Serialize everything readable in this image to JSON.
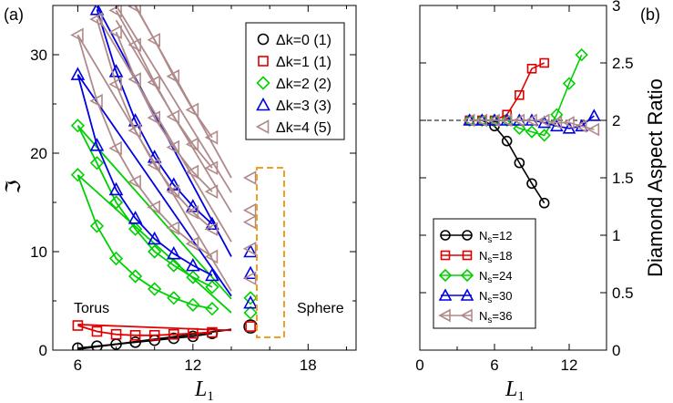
{
  "chart_data": [
    {
      "type": "line",
      "panel_label": "(a)",
      "xlabel": "L",
      "xlabel_sub": "1",
      "ylabel": "ℑ",
      "xlim": [
        4.7,
        20.5
      ],
      "ylim": [
        0,
        35
      ],
      "xticks": [
        6,
        12,
        18
      ],
      "yticks": [
        0,
        10,
        20,
        30
      ],
      "annotations": {
        "left": "Torus",
        "right": "Sphere"
      },
      "legend_position": "top-right",
      "series": [
        {
          "name": "Δk=0 (1)",
          "color": "#000000",
          "marker": "circle",
          "curves": [
            {
              "x": [
                6,
                7,
                8,
                9,
                10,
                11,
                12,
                13
              ],
              "y": [
                0.2,
                0.4,
                0.6,
                0.8,
                1.0,
                1.2,
                1.4,
                1.7
              ],
              "line_x": [
                6,
                14
              ],
              "line_y": [
                0.1,
                2.1
              ]
            }
          ]
        },
        {
          "name": "Δk=1 (1)",
          "color": "#e00000",
          "marker": "square",
          "curves": [
            {
              "x": [
                6,
                7,
                8,
                9,
                10,
                11,
                12,
                13
              ],
              "y": [
                2.5,
                1.9,
                1.6,
                1.5,
                1.5,
                1.6,
                1.7,
                1.8
              ],
              "line_x": [
                6,
                14
              ],
              "line_y": [
                2.6,
                2.0
              ]
            }
          ]
        },
        {
          "name": "Δk=2 (2)",
          "color": "#00d000",
          "marker": "diamond",
          "curves": [
            {
              "x": [
                6,
                7,
                8,
                9,
                10,
                11,
                12,
                13
              ],
              "y": [
                22.8,
                19.0,
                15.0,
                12.3,
                10.0,
                8.6,
                7.4,
                6.4
              ],
              "line_x": [
                6,
                14
              ],
              "line_y": [
                22.8,
                5.2
              ]
            },
            {
              "x": [
                6,
                7,
                8,
                9,
                10,
                11,
                12,
                13
              ],
              "y": [
                17.8,
                12.6,
                9.3,
                7.5,
                6.2,
                5.3,
                4.6,
                4.2
              ],
              "line_x": [
                6,
                14
              ],
              "line_y": [
                17.8,
                3.8
              ]
            }
          ]
        },
        {
          "name": "Δk=3 (3)",
          "color": "#0000e0",
          "marker": "triangle-up",
          "curves": [
            {
              "x": [
                6,
                7,
                8,
                9,
                10,
                11,
                12,
                13
              ],
              "y": [
                28.0,
                20.8,
                16.3,
                13.4,
                11.3,
                9.8,
                8.6,
                7.6
              ],
              "line_x": [
                6,
                14
              ],
              "line_y": [
                28.0,
                5.5
              ]
            },
            {
              "x": [
                7,
                8,
                9,
                10,
                11,
                12,
                13
              ],
              "y": [
                34.6,
                28.3,
                23.3,
                19.6,
                16.8,
                14.6,
                12.8
              ],
              "line_x": [
                7,
                14
              ],
              "line_y": [
                34.9,
                9.5
              ]
            }
          ]
        },
        {
          "name": "Δk=4 (5)",
          "color": "#b08a8a",
          "marker": "triangle-left",
          "curves": [
            {
              "x": [
                6,
                7,
                8,
                9,
                10,
                11,
                12,
                13
              ],
              "y": [
                32.0,
                25.3,
                20.5,
                17.1,
                14.5,
                12.4,
                10.8,
                9.5
              ],
              "line_x": [
                6,
                14
              ],
              "line_y": [
                32.0,
                6.0
              ]
            },
            {
              "x": [
                7,
                8,
                9,
                10,
                11,
                12,
                13
              ],
              "y": [
                33.6,
                27.0,
                22.3,
                18.8,
                16.1,
                14.0,
                12.3
              ],
              "line_x": [
                7,
                14
              ],
              "line_y": [
                34.0,
                11.0
              ]
            },
            {
              "x": [
                8,
                9,
                10,
                11,
                12,
                13
              ],
              "y": [
                32.3,
                27.5,
                23.6,
                20.6,
                18.1,
                16.1
              ],
              "line_x": [
                8,
                14
              ],
              "line_y": [
                33.5,
                14.0
              ]
            },
            {
              "x": [
                8,
                9,
                10,
                11,
                12,
                13
              ],
              "y": [
                34.5,
                31.0,
                27.2,
                23.7,
                20.9,
                18.5
              ],
              "line_x": [
                8,
                14
              ],
              "line_y": [
                35.0,
                16.0
              ]
            },
            {
              "x": [
                9,
                10,
                11,
                12,
                13
              ],
              "y": [
                34.9,
                31.5,
                27.8,
                24.4,
                21.6
              ],
              "line_x": [
                9,
                14
              ],
              "line_y": [
                35.0,
                17.5
              ]
            }
          ]
        }
      ],
      "sphere_points": [
        {
          "color": "#000000",
          "marker": "circle",
          "x": 15,
          "y": [
            2.4
          ]
        },
        {
          "color": "#e00000",
          "marker": "square",
          "x": 15,
          "y": [
            2.4
          ]
        },
        {
          "color": "#00d000",
          "marker": "diamond",
          "x": 15,
          "y": [
            3.8,
            5.3
          ]
        },
        {
          "color": "#0000e0",
          "marker": "triangle-up",
          "x": 15,
          "y": [
            4.8,
            7.8,
            10.0
          ]
        },
        {
          "color": "#b08a8a",
          "marker": "triangle-left",
          "x": 15,
          "y": [
            7.3,
            10.3,
            14.2,
            17.5,
            13.0
          ]
        }
      ]
    },
    {
      "type": "line",
      "panel_label": "(b)",
      "xlabel": "L",
      "xlabel_sub": "1",
      "ylabel": "Diamond Aspect Ratio",
      "xlim": [
        0,
        15
      ],
      "ylim": [
        0,
        3
      ],
      "xticks": [
        0,
        6,
        12
      ],
      "yticks": [
        0,
        0.5,
        1,
        1.5,
        2,
        2.5,
        3
      ],
      "ytick_labels": [
        "0",
        "0.5",
        "1",
        "1.5",
        "2",
        "2.5",
        "3"
      ],
      "reference_line": 2,
      "legend_position": "bottom-left",
      "series": [
        {
          "name": "N",
          "name_sub": "s",
          "name_suffix": "=12",
          "color": "#000000",
          "marker": "circle",
          "x": [
            4,
            5,
            6,
            7,
            8,
            9,
            10
          ],
          "y": [
            2.0,
            2.0,
            1.95,
            1.82,
            1.63,
            1.45,
            1.28
          ]
        },
        {
          "name": "N",
          "name_sub": "s",
          "name_suffix": "=18",
          "color": "#e00000",
          "marker": "square",
          "x": [
            4,
            5,
            6,
            7,
            8,
            9,
            10
          ],
          "y": [
            2.0,
            2.0,
            2.0,
            2.05,
            2.22,
            2.45,
            2.5
          ]
        },
        {
          "name": "N",
          "name_sub": "s",
          "name_suffix": "=24",
          "color": "#00d000",
          "marker": "diamond",
          "x": [
            4,
            5,
            6,
            7,
            8,
            9,
            10,
            11,
            12,
            13
          ],
          "y": [
            2.0,
            2.0,
            2.0,
            2.0,
            1.93,
            1.9,
            1.87,
            2.05,
            2.32,
            2.57
          ]
        },
        {
          "name": "N",
          "name_sub": "s",
          "name_suffix": "=30",
          "color": "#0000e0",
          "marker": "triangle-up",
          "x": [
            4,
            5,
            6,
            7,
            8,
            9,
            10,
            11,
            12,
            13,
            14
          ],
          "y": [
            2.0,
            2.0,
            2.0,
            2.0,
            2.0,
            2.0,
            1.98,
            1.95,
            1.93,
            1.95,
            2.04
          ]
        },
        {
          "name": "N",
          "name_sub": "s",
          "name_suffix": "=36",
          "color": "#b08a8a",
          "marker": "triangle-left",
          "x": [
            4,
            5,
            6,
            7,
            8,
            9,
            10,
            11,
            12,
            13,
            14
          ],
          "y": [
            2.0,
            2.0,
            2.0,
            2.0,
            2.0,
            2.0,
            2.0,
            1.98,
            1.98,
            1.95,
            1.92
          ]
        }
      ]
    }
  ]
}
